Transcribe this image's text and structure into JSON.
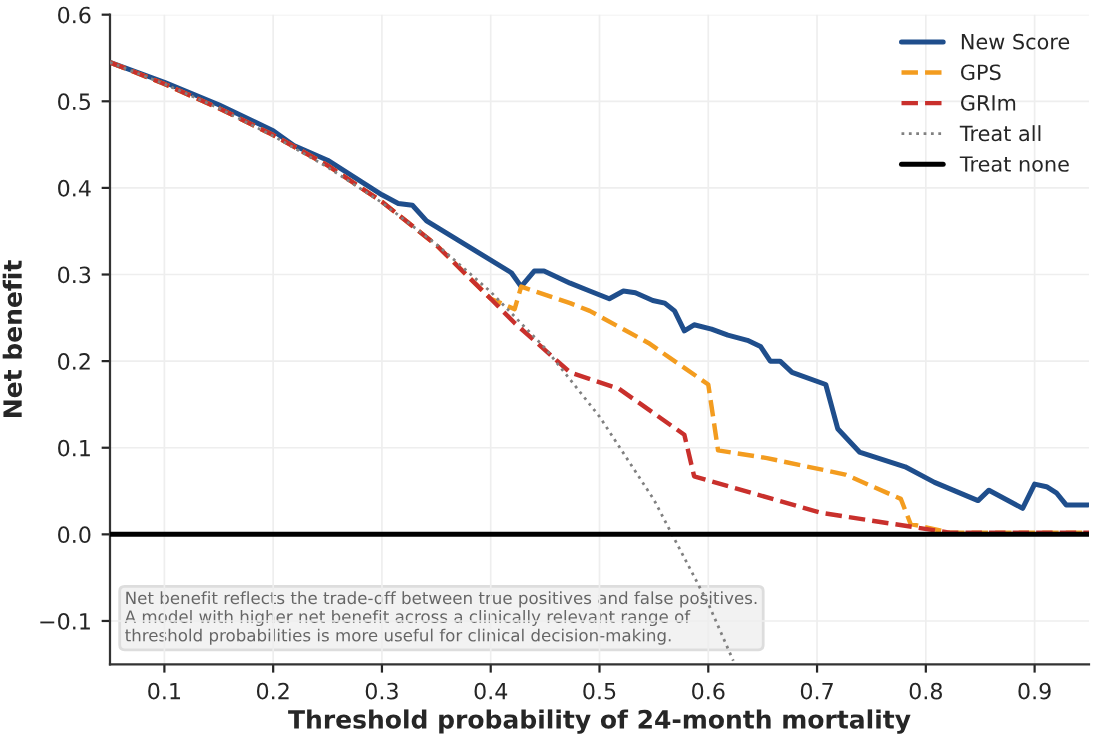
{
  "chart_data": {
    "type": "line",
    "xlabel": "Threshold probability of 24-month mortality",
    "ylabel": "Net benefit",
    "xlim": [
      0.05,
      0.95
    ],
    "ylim": [
      -0.15,
      0.6
    ],
    "xticks": [
      0.1,
      0.2,
      0.3,
      0.4,
      0.5,
      0.6,
      0.7,
      0.8,
      0.9
    ],
    "yticks": [
      {
        "value": -0.1,
        "label": "−0.1"
      },
      {
        "value": 0.0,
        "label": "0.0"
      },
      0.1,
      0.2,
      0.3,
      0.4,
      0.5,
      0.6
    ],
    "grid": true,
    "legend": "top right",
    "series": [
      {
        "name": "New Score",
        "color": "#1f4e8c",
        "line_style": "solid",
        "x": [
          0.05,
          0.1,
          0.15,
          0.2,
          0.219,
          0.25,
          0.3,
          0.315,
          0.328,
          0.341,
          0.419,
          0.428,
          0.44,
          0.449,
          0.473,
          0.491,
          0.509,
          0.522,
          0.533,
          0.549,
          0.56,
          0.569,
          0.578,
          0.587,
          0.603,
          0.618,
          0.636,
          0.648,
          0.657,
          0.666,
          0.677,
          0.708,
          0.719,
          0.739,
          0.781,
          0.808,
          0.848,
          0.858,
          0.889,
          0.9,
          0.911,
          0.92,
          0.929,
          0.949
        ],
        "values": [
          0.545,
          0.522,
          0.496,
          0.466,
          0.449,
          0.432,
          0.392,
          0.382,
          0.38,
          0.362,
          0.302,
          0.286,
          0.304,
          0.304,
          0.29,
          0.281,
          0.272,
          0.281,
          0.279,
          0.27,
          0.267,
          0.258,
          0.235,
          0.242,
          0.237,
          0.23,
          0.224,
          0.217,
          0.2,
          0.2,
          0.187,
          0.173,
          0.122,
          0.095,
          0.078,
          0.06,
          0.039,
          0.051,
          0.03,
          0.058,
          0.055,
          0.048,
          0.034,
          0.034
        ]
      },
      {
        "name": "GPS",
        "color": "#f39c1f",
        "line_style": "dashed",
        "x": [
          0.05,
          0.1,
          0.15,
          0.2,
          0.25,
          0.3,
          0.35,
          0.4,
          0.422,
          0.428,
          0.473,
          0.491,
          0.545,
          0.6,
          0.609,
          0.654,
          0.726,
          0.777,
          0.786,
          0.822,
          0.95
        ],
        "values": [
          0.545,
          0.52,
          0.492,
          0.461,
          0.426,
          0.384,
          0.334,
          0.272,
          0.26,
          0.286,
          0.267,
          0.258,
          0.221,
          0.173,
          0.097,
          0.088,
          0.069,
          0.041,
          0.012,
          0.002,
          0.002
        ]
      },
      {
        "name": "GRIm",
        "color": "#c9302c",
        "line_style": "dashed",
        "x": [
          0.05,
          0.1,
          0.15,
          0.2,
          0.25,
          0.3,
          0.35,
          0.4,
          0.422,
          0.473,
          0.518,
          0.578,
          0.587,
          0.703,
          0.822,
          0.95
        ],
        "values": [
          0.545,
          0.52,
          0.492,
          0.461,
          0.426,
          0.384,
          0.334,
          0.272,
          0.244,
          0.187,
          0.168,
          0.115,
          0.067,
          0.025,
          0.002,
          0.002
        ]
      },
      {
        "name": "Treat all",
        "color": "#808080",
        "line_style": "dotted",
        "x": [
          0.05,
          0.1,
          0.15,
          0.2,
          0.25,
          0.3,
          0.35,
          0.4,
          0.45,
          0.5,
          0.55,
          0.6,
          0.623
        ],
        "values": [
          0.545,
          0.52,
          0.492,
          0.46,
          0.424,
          0.383,
          0.335,
          0.28,
          0.215,
          0.136,
          0.04,
          -0.08,
          -0.146
        ]
      },
      {
        "name": "Treat none",
        "color": "#000000",
        "line_style": "solid",
        "x": [
          0.05,
          0.95
        ],
        "values": [
          0.0,
          0.0
        ]
      }
    ],
    "annotations": [
      "Net benefit reflects the trade-off between true positives and false positives.\nA model with higher net benefit across a clinically relevant range of\nthreshold probabilities is more useful for clinical decision-making."
    ]
  }
}
